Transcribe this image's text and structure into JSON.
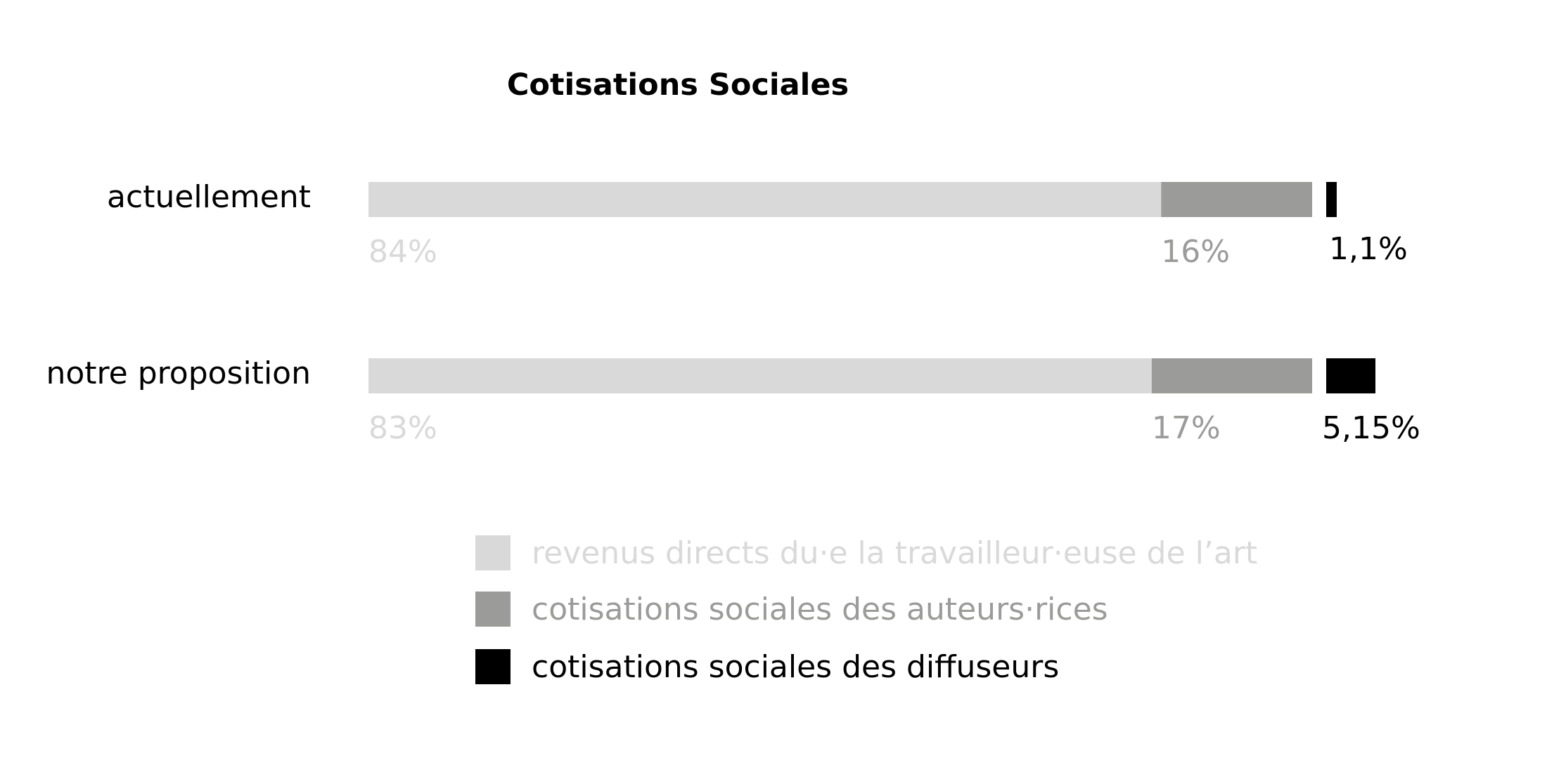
{
  "chart_data": {
    "type": "bar",
    "orientation": "horizontal",
    "stacked": true,
    "title": "Cotisations Sociales",
    "categories": [
      "actuellement",
      "notre proposition"
    ],
    "series": [
      {
        "name": "revenus directs du·e la travailleur·euse de l’art",
        "color": "#d9d9d9",
        "values": [
          84,
          83
        ],
        "labels": [
          "84%",
          "83%"
        ]
      },
      {
        "name": "cotisations sociales des auteurs·rices",
        "color": "#9b9b9a",
        "values": [
          16,
          17
        ],
        "labels": [
          "16%",
          "17%"
        ]
      },
      {
        "name": "cotisations sociales des diffuseurs",
        "color": "#000000",
        "values": [
          1.1,
          5.15
        ],
        "labels": [
          "1,1%",
          "5,15%"
        ]
      }
    ],
    "grid": false,
    "legend_position": "bottom"
  }
}
